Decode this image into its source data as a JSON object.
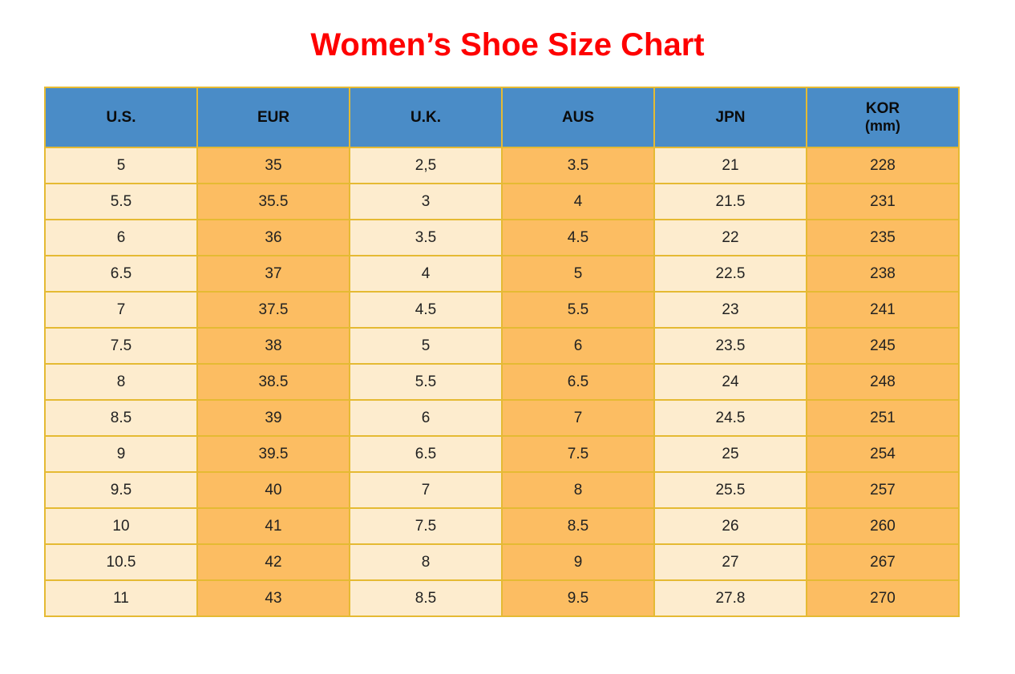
{
  "title": {
    "text": "Women’s Shoe Size Chart"
  },
  "colors": {
    "title": "#fe0000",
    "header_bg": "#4a8cc7",
    "header_text": "#0b0b0b",
    "column_light": "#fdecce",
    "column_orange": "#fcbd62",
    "border": "#e5ba33",
    "outer_border": "#f0a637",
    "cell_text": "#222222"
  },
  "chart_data": {
    "type": "table",
    "title": "Women’s Shoe Size Chart",
    "columns": [
      "U.S.",
      "EUR",
      "U.K.",
      "AUS",
      "JPN",
      "KOR (mm)"
    ],
    "header_display": [
      {
        "label": "U.S.",
        "sublabel": ""
      },
      {
        "label": "EUR",
        "sublabel": ""
      },
      {
        "label": "U.K.",
        "sublabel": ""
      },
      {
        "label": "AUS",
        "sublabel": ""
      },
      {
        "label": "JPN",
        "sublabel": ""
      },
      {
        "label": "KOR",
        "sublabel": "(mm)"
      }
    ],
    "rows": [
      [
        "5",
        "35",
        "2,5",
        "3.5",
        "21",
        "228"
      ],
      [
        "5.5",
        "35.5",
        "3",
        "4",
        "21.5",
        "231"
      ],
      [
        "6",
        "36",
        "3.5",
        "4.5",
        "22",
        "235"
      ],
      [
        "6.5",
        "37",
        "4",
        "5",
        "22.5",
        "238"
      ],
      [
        "7",
        "37.5",
        "4.5",
        "5.5",
        "23",
        "241"
      ],
      [
        "7.5",
        "38",
        "5",
        "6",
        "23.5",
        "245"
      ],
      [
        "8",
        "38.5",
        "5.5",
        "6.5",
        "24",
        "248"
      ],
      [
        "8.5",
        "39",
        "6",
        "7",
        "24.5",
        "251"
      ],
      [
        "9",
        "39.5",
        "6.5",
        "7.5",
        "25",
        "254"
      ],
      [
        "9.5",
        "40",
        "7",
        "8",
        "25.5",
        "257"
      ],
      [
        "10",
        "41",
        "7.5",
        "8.5",
        "26",
        "260"
      ],
      [
        "10.5",
        "42",
        "8",
        "9",
        "27",
        "267"
      ],
      [
        "11",
        "43",
        "8.5",
        "9.5",
        "27.8",
        "270"
      ]
    ],
    "layout": {
      "column_color_pattern": [
        "light",
        "orange",
        "light",
        "orange",
        "light",
        "orange"
      ],
      "header_style": "blue-band",
      "grid": true
    }
  }
}
